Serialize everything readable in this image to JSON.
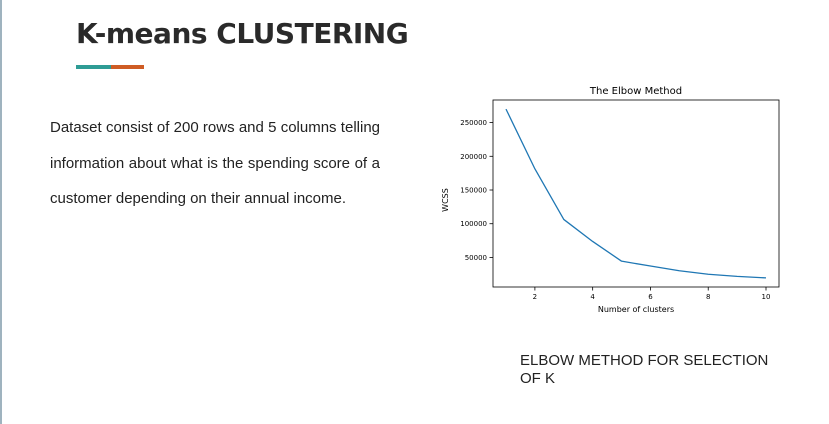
{
  "slide": {
    "title": "K-means CLUSTERING",
    "accent_colors": [
      "#2e9c95",
      "#cf5c24"
    ],
    "body": "Dataset consist of 200 rows and 5 columns telling information about what is the spending score of a customer depending on their annual income.",
    "caption": "ELBOW METHOD FOR SELECTION OF K"
  },
  "chart_data": {
    "type": "line",
    "title": "The Elbow Method",
    "xlabel": "Number of clusters",
    "ylabel": "WCSS",
    "x": [
      1,
      2,
      3,
      4,
      5,
      6,
      7,
      8,
      9,
      10
    ],
    "series": [
      {
        "values": [
          269981,
          181363,
          106348,
          73679,
          44448,
          37233,
          30260,
          25012,
          21850,
          19660
        ],
        "color": "#1f77b4"
      }
    ],
    "xticks": [
      2,
      4,
      6,
      8,
      10
    ],
    "yticks": [
      50000,
      100000,
      150000,
      200000,
      250000
    ],
    "xlim": [
      0.55,
      10.45
    ],
    "ylim": [
      6145,
      283496
    ],
    "grid": false
  }
}
